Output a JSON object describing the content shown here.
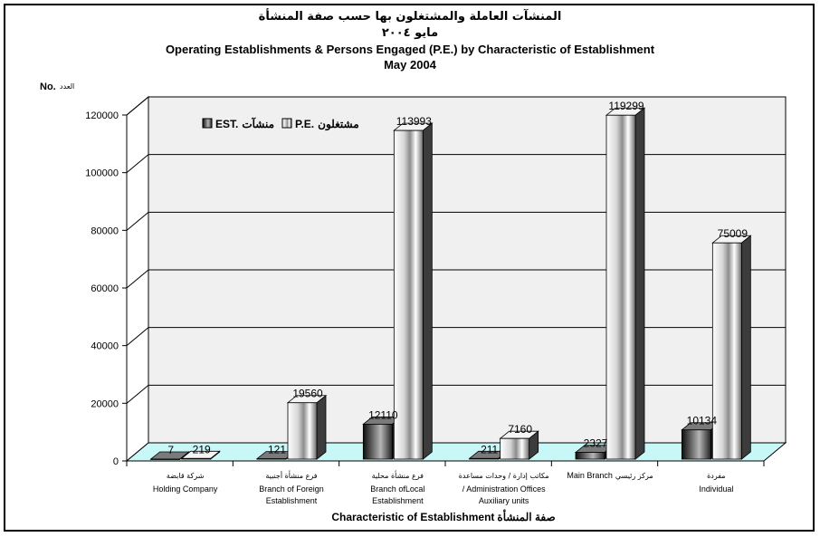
{
  "titles": {
    "arabic_title": "المنشآت العاملة والمشتغلون بها حسب صفة المنشأة",
    "arabic_date": "مايو ٢٠٠٤",
    "english_title": "Operating Establishments & Persons Engaged (P.E.) by Characteristic of Establishment",
    "english_date": "May 2004"
  },
  "chart_data": {
    "type": "bar",
    "title": "Operating Establishments & Persons Engaged (P.E.) by Characteristic of Establishment",
    "subtitle": "May 2004",
    "ylabel": "No.",
    "ylabel_arabic": "العدد",
    "xlabel": "Characteristic of Establishment",
    "xlabel_arabic": "صفة المنشأة",
    "ylim": [
      0,
      120000
    ],
    "yticks": [
      0,
      20000,
      40000,
      60000,
      80000,
      100000,
      120000
    ],
    "grid": true,
    "legend_position": "top-left",
    "categories": [
      {
        "arabic": "شركة قابضة",
        "english": [
          "Holding Company"
        ]
      },
      {
        "arabic": "فرع منشأة أجنبية",
        "english": [
          "Branch of Foreign",
          "Establishment"
        ]
      },
      {
        "arabic": "فرع منشأة محلية",
        "english": [
          "Branch ofLocal",
          "Establishment"
        ]
      },
      {
        "arabic": "مكاتب إدارة / وحدات مساعدة",
        "english": [
          "/ Administration Offices",
          "Auxiliary units"
        ]
      },
      {
        "arabic": "مركز رئيسي",
        "english": [
          "Main Branch"
        ],
        "same_line": true
      },
      {
        "arabic": "مفردة",
        "english": [
          "Individual"
        ]
      }
    ],
    "series": [
      {
        "name": "EST.",
        "name_arabic": "منشآت",
        "values": [
          7,
          121,
          12110,
          211,
          2327,
          10134
        ]
      },
      {
        "name": "P.E.",
        "name_arabic": "مشتغلون",
        "values": [
          219,
          19560,
          113993,
          7160,
          119299,
          75009
        ]
      }
    ]
  },
  "colors": {
    "floor": "#c8f7f7",
    "back_wall": "#f0f0f0",
    "grid": "#000000",
    "bar_dark": "#2a2a2a",
    "bar_light": "#ffffff"
  }
}
